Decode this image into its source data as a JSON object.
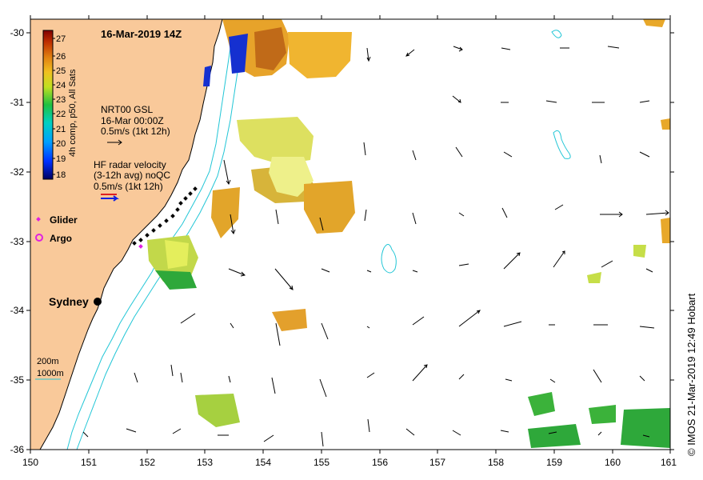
{
  "title": "16-Mar-2019 14Z",
  "credit": "© IMOS 21-Mar-2019 12:49 Hobart",
  "colorbar": {
    "label": "4h comp, p50, All Sats",
    "ticks": [
      "27",
      "26",
      "25",
      "24",
      "23",
      "22",
      "21",
      "20",
      "19",
      "18"
    ]
  },
  "legend": {
    "gsl": [
      "NRT00 GSL",
      "16-Mar 00:00Z",
      "0.5m/s (1kt 12h)"
    ],
    "hf": [
      "HF radar velocity",
      "(3-12h avg) noQC",
      "0.5m/s (1kt 12h)"
    ],
    "glider": "Glider",
    "argo": "Argo",
    "bathy": [
      "200m",
      "1000m"
    ]
  },
  "place_label": "Sydney",
  "axes": {
    "lon_ticks": [
      "150",
      "151",
      "152",
      "153",
      "154",
      "155",
      "156",
      "157",
      "158",
      "159",
      "160",
      "161"
    ],
    "lat_ticks": [
      "-30",
      "-31",
      "-32",
      "-33",
      "-34",
      "-35",
      "-36"
    ],
    "lon_range": [
      150,
      161
    ],
    "lat_range": [
      -36,
      -30
    ]
  },
  "colors": {
    "land": "#f9c99a",
    "coast": "#000000",
    "bathy": "#22c6d6",
    "glider": "#e020e0"
  }
}
